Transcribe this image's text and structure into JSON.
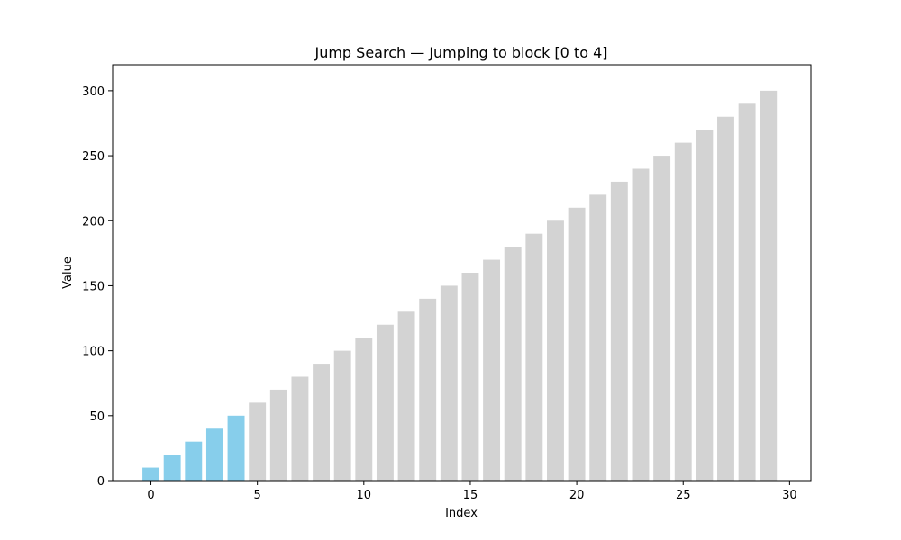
{
  "chart_data": {
    "type": "bar",
    "title": "Jump Search — Jumping to block [0 to 4]",
    "xlabel": "Index",
    "ylabel": "Value",
    "x": [
      0,
      1,
      2,
      3,
      4,
      5,
      6,
      7,
      8,
      9,
      10,
      11,
      12,
      13,
      14,
      15,
      16,
      17,
      18,
      19,
      20,
      21,
      22,
      23,
      24,
      25,
      26,
      27,
      28,
      29
    ],
    "values": [
      10,
      20,
      30,
      40,
      50,
      60,
      70,
      80,
      90,
      100,
      110,
      120,
      130,
      140,
      150,
      160,
      170,
      180,
      190,
      200,
      210,
      220,
      230,
      240,
      250,
      260,
      270,
      280,
      290,
      300
    ],
    "highlighted_range": [
      0,
      4
    ],
    "colors": {
      "highlight": "#87ceeb",
      "default": "#d3d3d3"
    },
    "xlim": [
      -1.8,
      31
    ],
    "ylim": [
      0,
      320
    ],
    "xticks": [
      "0",
      "5",
      "10",
      "15",
      "20",
      "25",
      "30"
    ],
    "yticks": [
      "0",
      "50",
      "100",
      "150",
      "200",
      "250",
      "300"
    ],
    "grid": false,
    "legend": "none"
  }
}
